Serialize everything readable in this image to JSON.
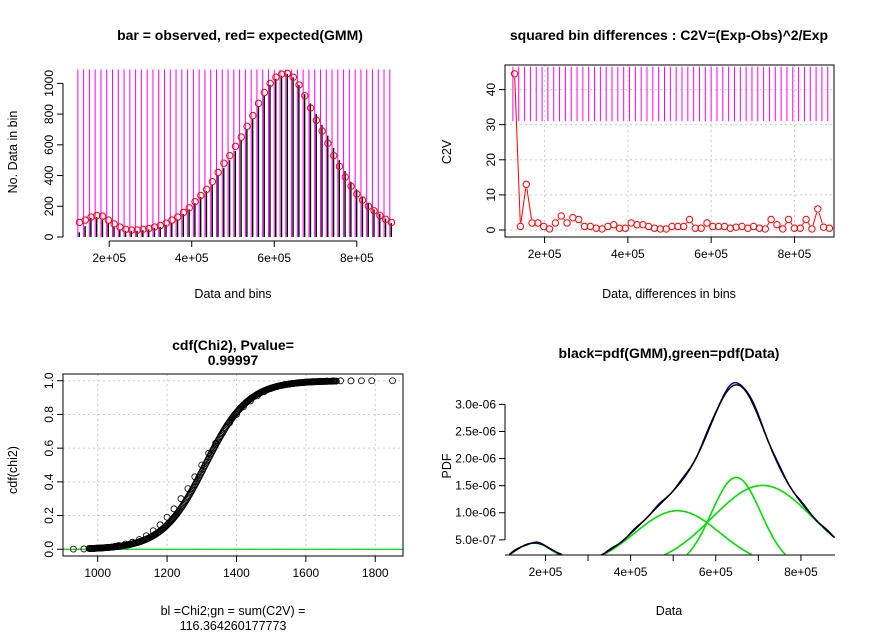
{
  "colors": {
    "magenta": "#ff00ff",
    "red": "#ff0000",
    "green": "#00dd00",
    "navy": "#000080",
    "grid": "#cccccc"
  },
  "chart_data": [
    {
      "id": "p1",
      "type": "bar",
      "title": "bar = observed, red= expected(GMM)",
      "xlabel": "Data and bins",
      "ylabel": "No. Data in bin",
      "xlim": [
        105000,
        895000
      ],
      "ylim": [
        0,
        1100
      ],
      "xticks": [
        200000,
        400000,
        600000,
        800000
      ],
      "xtick_labels": [
        "2e+05",
        "4e+05",
        "6e+05",
        "8e+05"
      ],
      "yticks": [
        0,
        200,
        400,
        600,
        800,
        1000
      ],
      "ytick_labels": [
        "0",
        "200",
        "400",
        "600",
        "800",
        "1000"
      ],
      "bin_edges": [
        124000,
        138000,
        152000,
        166000,
        180000,
        194000,
        208000,
        222000,
        236000,
        250000,
        264000,
        278000,
        292000,
        306000,
        320000,
        334000,
        348000,
        362000,
        376000,
        390000,
        404000,
        418000,
        432000,
        446000,
        460000,
        474000,
        488000,
        502000,
        516000,
        530000,
        544000,
        558000,
        572000,
        586000,
        600000,
        614000,
        628000,
        642000,
        656000,
        670000,
        684000,
        698000,
        712000,
        726000,
        740000,
        754000,
        768000,
        782000,
        796000,
        810000,
        824000,
        838000,
        852000,
        866000,
        880000
      ],
      "bin_line_top": 1090,
      "series": [
        {
          "name": "observed",
          "kind": "bar",
          "x": [
            124000,
            138000,
            152000,
            166000,
            180000,
            194000,
            208000,
            222000,
            236000,
            250000,
            264000,
            278000,
            292000,
            306000,
            320000,
            334000,
            348000,
            362000,
            376000,
            390000,
            404000,
            418000,
            432000,
            446000,
            460000,
            474000,
            488000,
            502000,
            516000,
            530000,
            544000,
            558000,
            572000,
            586000,
            600000,
            614000,
            628000,
            642000,
            656000,
            670000,
            684000,
            698000,
            712000,
            726000,
            740000,
            754000,
            768000,
            782000,
            796000,
            810000,
            824000,
            838000,
            852000,
            866000,
            880000
          ],
          "values": [
            30,
            70,
            125,
            130,
            120,
            90,
            70,
            50,
            40,
            40,
            40,
            45,
            50,
            60,
            65,
            80,
            95,
            115,
            150,
            180,
            220,
            260,
            300,
            340,
            400,
            450,
            500,
            560,
            630,
            700,
            770,
            850,
            920,
            990,
            1030,
            1050,
            1060,
            1040,
            990,
            930,
            870,
            800,
            730,
            660,
            580,
            500,
            430,
            360,
            310,
            260,
            220,
            180,
            150,
            120,
            90
          ]
        },
        {
          "name": "expected",
          "kind": "points",
          "x": [
            128000,
            142000,
            156000,
            170000,
            184000,
            198000,
            212000,
            226000,
            240000,
            254000,
            268000,
            282000,
            296000,
            310000,
            324000,
            338000,
            352000,
            366000,
            380000,
            394000,
            408000,
            422000,
            436000,
            450000,
            464000,
            478000,
            492000,
            506000,
            520000,
            534000,
            548000,
            562000,
            576000,
            590000,
            604000,
            618000,
            632000,
            646000,
            660000,
            674000,
            688000,
            702000,
            716000,
            730000,
            744000,
            758000,
            772000,
            786000,
            800000,
            814000,
            828000,
            842000,
            856000,
            870000,
            884000
          ],
          "values": [
            95,
            110,
            130,
            140,
            135,
            110,
            85,
            65,
            50,
            45,
            45,
            50,
            55,
            65,
            75,
            90,
            110,
            130,
            160,
            190,
            230,
            270,
            310,
            360,
            420,
            480,
            530,
            590,
            650,
            720,
            790,
            870,
            940,
            1000,
            1040,
            1060,
            1065,
            1040,
            990,
            920,
            840,
            760,
            690,
            610,
            530,
            460,
            390,
            330,
            280,
            240,
            200,
            170,
            140,
            115,
            95
          ]
        }
      ]
    },
    {
      "id": "p2",
      "type": "scatter",
      "title": "squared bin differences : C2V=(Exp-Obs)^2/Exp",
      "xlabel": "Data, differences in bins",
      "ylabel": "C2V",
      "xlim": [
        105000,
        895000
      ],
      "ylim": [
        -2,
        47
      ],
      "xticks": [
        200000,
        400000,
        600000,
        800000
      ],
      "xtick_labels": [
        "2e+05",
        "4e+05",
        "6e+05",
        "8e+05"
      ],
      "yticks": [
        0,
        10,
        20,
        30,
        40
      ],
      "ytick_labels": [
        "0",
        "10",
        "20",
        "30",
        "40"
      ],
      "grid": true,
      "bin_edges": [
        124000,
        138000,
        152000,
        166000,
        180000,
        194000,
        208000,
        222000,
        236000,
        250000,
        264000,
        278000,
        292000,
        306000,
        320000,
        334000,
        348000,
        362000,
        376000,
        390000,
        404000,
        418000,
        432000,
        446000,
        460000,
        474000,
        488000,
        502000,
        516000,
        530000,
        544000,
        558000,
        572000,
        586000,
        600000,
        614000,
        628000,
        642000,
        656000,
        670000,
        684000,
        698000,
        712000,
        726000,
        740000,
        754000,
        768000,
        782000,
        796000,
        810000,
        824000,
        838000,
        852000,
        866000,
        880000
      ],
      "bin_line_range": [
        31,
        46.5
      ],
      "series": [
        {
          "name": "C2V",
          "x": [
            128000,
            142000,
            156000,
            170000,
            184000,
            198000,
            212000,
            226000,
            240000,
            254000,
            268000,
            282000,
            296000,
            310000,
            324000,
            338000,
            352000,
            366000,
            380000,
            394000,
            408000,
            422000,
            436000,
            450000,
            464000,
            478000,
            492000,
            506000,
            520000,
            534000,
            548000,
            562000,
            576000,
            590000,
            604000,
            618000,
            632000,
            646000,
            660000,
            674000,
            688000,
            702000,
            716000,
            730000,
            744000,
            758000,
            772000,
            786000,
            800000,
            814000,
            828000,
            842000,
            856000,
            870000,
            884000
          ],
          "values": [
            44.5,
            1,
            13,
            2,
            2,
            1,
            0.3,
            2,
            4,
            2,
            3.5,
            3,
            1,
            1,
            0.5,
            0.3,
            1,
            1.5,
            0.5,
            0.5,
            2,
            1.5,
            1.5,
            1,
            0.5,
            0.3,
            0.3,
            1,
            1,
            1,
            3,
            0.5,
            0.5,
            2,
            1,
            1,
            1,
            0.5,
            0.8,
            1,
            0.5,
            1,
            0.5,
            0.3,
            3,
            1.5,
            0.3,
            3,
            0.5,
            0.5,
            3,
            0.3,
            6,
            0.8,
            0.5
          ]
        }
      ]
    },
    {
      "id": "p3",
      "type": "scatter",
      "title": "cdf(Chi2), Pvalue=\n0.99997",
      "xlabel": "bl =Chi2;gn = sum(C2V) =\n116.364260177773",
      "ylabel": "cdf(chi2)",
      "xlim": [
        900,
        1880
      ],
      "ylim": [
        -0.04,
        1.04
      ],
      "xticks": [
        1000,
        1200,
        1400,
        1600,
        1800
      ],
      "xtick_labels": [
        "1000",
        "1200",
        "1400",
        "1600",
        "1800"
      ],
      "yticks": [
        0,
        0.2,
        0.4,
        0.6,
        0.8,
        1.0
      ],
      "ytick_labels": [
        "0.0",
        "0.2",
        "0.4",
        "0.6",
        "0.8",
        "1.0"
      ],
      "grid": true,
      "cdf_mean": 1310,
      "cdf_sd": 105,
      "sum_C2V": 116.364260177773,
      "series": [
        {
          "name": "Chi2",
          "x": [
            930,
            960,
            990,
            1010,
            1030,
            1050,
            1060,
            1080,
            1100,
            1120,
            1140,
            1160,
            1180,
            1200,
            1220,
            1240,
            1260,
            1280,
            1300,
            1320,
            1340,
            1360,
            1380,
            1400,
            1420,
            1440,
            1460,
            1480,
            1500,
            1520,
            1540,
            1560,
            1580,
            1600,
            1620,
            1640,
            1660,
            1680,
            1700,
            1730,
            1760,
            1790,
            1850
          ],
          "values": [
            0.001,
            0.002,
            0.004,
            0.007,
            0.012,
            0.018,
            0.022,
            0.031,
            0.042,
            0.058,
            0.08,
            0.11,
            0.145,
            0.19,
            0.24,
            0.3,
            0.36,
            0.43,
            0.5,
            0.57,
            0.63,
            0.69,
            0.75,
            0.8,
            0.845,
            0.88,
            0.91,
            0.935,
            0.955,
            0.968,
            0.977,
            0.984,
            0.989,
            0.993,
            0.995,
            0.997,
            0.998,
            0.999,
            0.9995,
            0.9997,
            0.9998,
            0.9999,
            0.9999
          ]
        }
      ]
    },
    {
      "id": "p4",
      "type": "line",
      "title": "black=pdf(GMM),green=pdf(Data)",
      "xlabel": "Data",
      "ylabel": "PDF",
      "xlim": [
        105000,
        880000
      ],
      "ylim": [
        2.2e-07,
        3.45e-06
      ],
      "xticks": [
        200000,
        400000,
        600000,
        800000
      ],
      "xtick_labels": [
        "2e+05",
        "4e+05",
        "6e+05",
        "8e+05"
      ],
      "minor_xticks": [
        300000,
        500000,
        700000
      ],
      "yticks": [
        5e-07,
        1e-06,
        1.5e-06,
        2e-06,
        2.5e-06,
        3e-06
      ],
      "ytick_labels": [
        "5.0e-07",
        "1.0e-06",
        "1.5e-06",
        "2.0e-06",
        "2.5e-06",
        "3.0e-06"
      ],
      "components": [
        {
          "w": 0.055,
          "mu": 173000,
          "sd": 50000
        },
        {
          "w": 0.26,
          "mu": 510000,
          "sd": 100000
        },
        {
          "w": 0.24,
          "mu": 648000,
          "sd": 58000
        },
        {
          "w": 0.445,
          "mu": 710000,
          "sd": 118000
        }
      ]
    }
  ]
}
